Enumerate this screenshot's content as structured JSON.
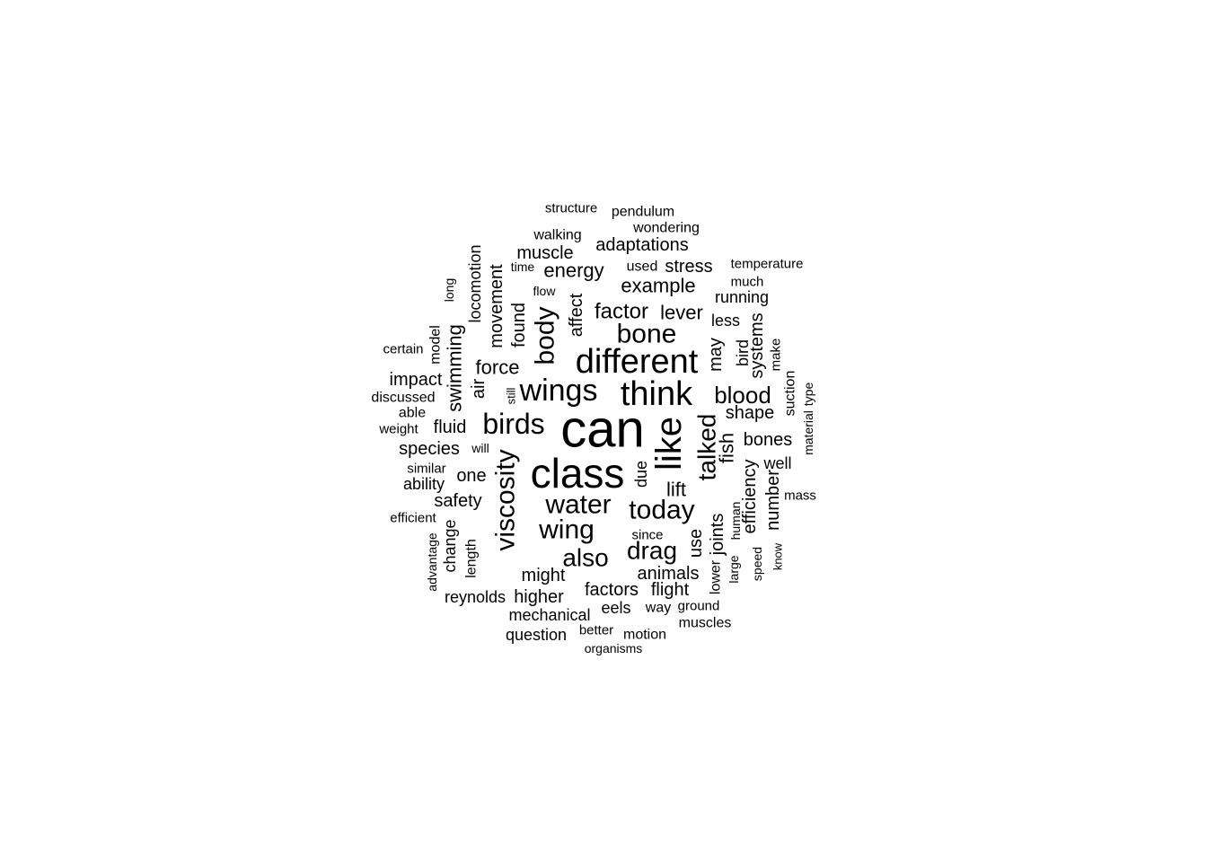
{
  "word_cloud": {
    "words": [
      {
        "text": "can"
      },
      {
        "text": "class"
      },
      {
        "text": "like"
      },
      {
        "text": "think"
      },
      {
        "text": "different"
      },
      {
        "text": "wings"
      },
      {
        "text": "birds"
      },
      {
        "text": "viscosity"
      },
      {
        "text": "water"
      },
      {
        "text": "today"
      },
      {
        "text": "body"
      },
      {
        "text": "wing"
      },
      {
        "text": "bone"
      },
      {
        "text": "talked"
      },
      {
        "text": "drag"
      },
      {
        "text": "also"
      },
      {
        "text": "blood"
      },
      {
        "text": "factor"
      },
      {
        "text": "lever"
      },
      {
        "text": "example"
      },
      {
        "text": "energy"
      },
      {
        "text": "swimming"
      },
      {
        "text": "movement"
      },
      {
        "text": "found"
      },
      {
        "text": "force"
      },
      {
        "text": "fluid"
      },
      {
        "text": "species"
      },
      {
        "text": "one"
      },
      {
        "text": "safety"
      },
      {
        "text": "might"
      },
      {
        "text": "animals"
      },
      {
        "text": "factors"
      },
      {
        "text": "flight"
      },
      {
        "text": "higher"
      },
      {
        "text": "mechanical"
      },
      {
        "text": "lift"
      },
      {
        "text": "fish"
      },
      {
        "text": "bones"
      },
      {
        "text": "shape"
      },
      {
        "text": "efficiency"
      },
      {
        "text": "number"
      },
      {
        "text": "joints"
      },
      {
        "text": "lower"
      },
      {
        "text": "use"
      },
      {
        "text": "affect"
      },
      {
        "text": "may"
      },
      {
        "text": "systems"
      },
      {
        "text": "bird"
      },
      {
        "text": "adaptations"
      },
      {
        "text": "muscle"
      },
      {
        "text": "locomotion"
      },
      {
        "text": "impact"
      },
      {
        "text": "air"
      },
      {
        "text": "stress"
      },
      {
        "text": "running"
      },
      {
        "text": "well"
      },
      {
        "text": "change"
      },
      {
        "text": "length"
      },
      {
        "text": "reynolds"
      },
      {
        "text": "question"
      },
      {
        "text": "eels"
      },
      {
        "text": "way"
      },
      {
        "text": "due"
      },
      {
        "text": "walking"
      },
      {
        "text": "less"
      },
      {
        "text": "suction"
      },
      {
        "text": "model"
      },
      {
        "text": "used"
      },
      {
        "text": "ability"
      },
      {
        "text": "able"
      },
      {
        "text": "wondering"
      },
      {
        "text": "pendulum"
      },
      {
        "text": "motion"
      },
      {
        "text": "muscles"
      },
      {
        "text": "structure"
      },
      {
        "text": "certain"
      },
      {
        "text": "discussed"
      },
      {
        "text": "weight"
      },
      {
        "text": "similar"
      },
      {
        "text": "efficient"
      },
      {
        "text": "advantage"
      },
      {
        "text": "better"
      },
      {
        "text": "organisms"
      },
      {
        "text": "ground"
      },
      {
        "text": "since"
      },
      {
        "text": "large"
      },
      {
        "text": "human"
      },
      {
        "text": "speed"
      },
      {
        "text": "know"
      },
      {
        "text": "mass"
      },
      {
        "text": "material"
      },
      {
        "text": "type"
      },
      {
        "text": "make"
      },
      {
        "text": "temperature"
      },
      {
        "text": "much"
      },
      {
        "text": "time"
      },
      {
        "text": "flow"
      },
      {
        "text": "long"
      },
      {
        "text": "will"
      },
      {
        "text": "still"
      }
    ]
  }
}
